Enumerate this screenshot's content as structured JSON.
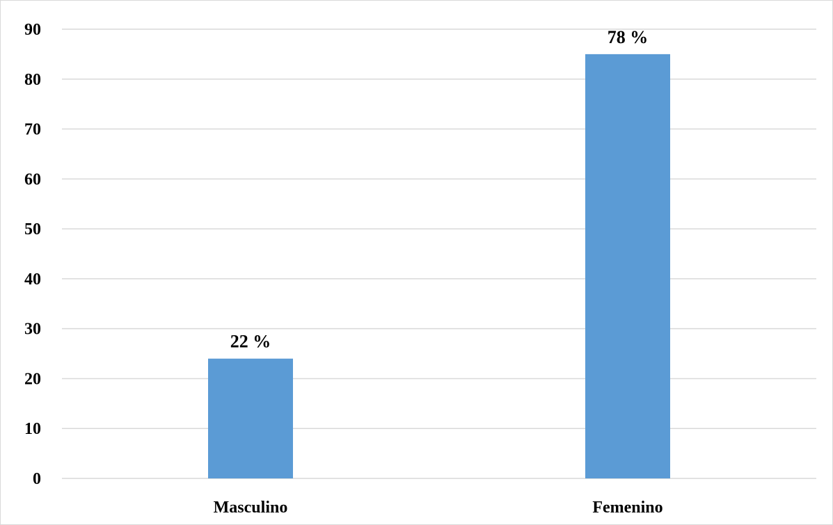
{
  "chart_data": {
    "type": "bar",
    "categories": [
      "Masculino",
      "Femenino"
    ],
    "series": [
      {
        "values": [
          24,
          85
        ],
        "data_labels": [
          "22 %",
          "78 %"
        ]
      }
    ],
    "title": "",
    "xlabel": "",
    "ylabel": "",
    "ylim": [
      0,
      90
    ],
    "yticks": [
      "0",
      "10",
      "20",
      "30",
      "40",
      "50",
      "60",
      "70",
      "80",
      "90"
    ],
    "grid": true,
    "legend": "none",
    "bar_color": "#5b9bd5",
    "grid_color": "#d9d9d9"
  }
}
